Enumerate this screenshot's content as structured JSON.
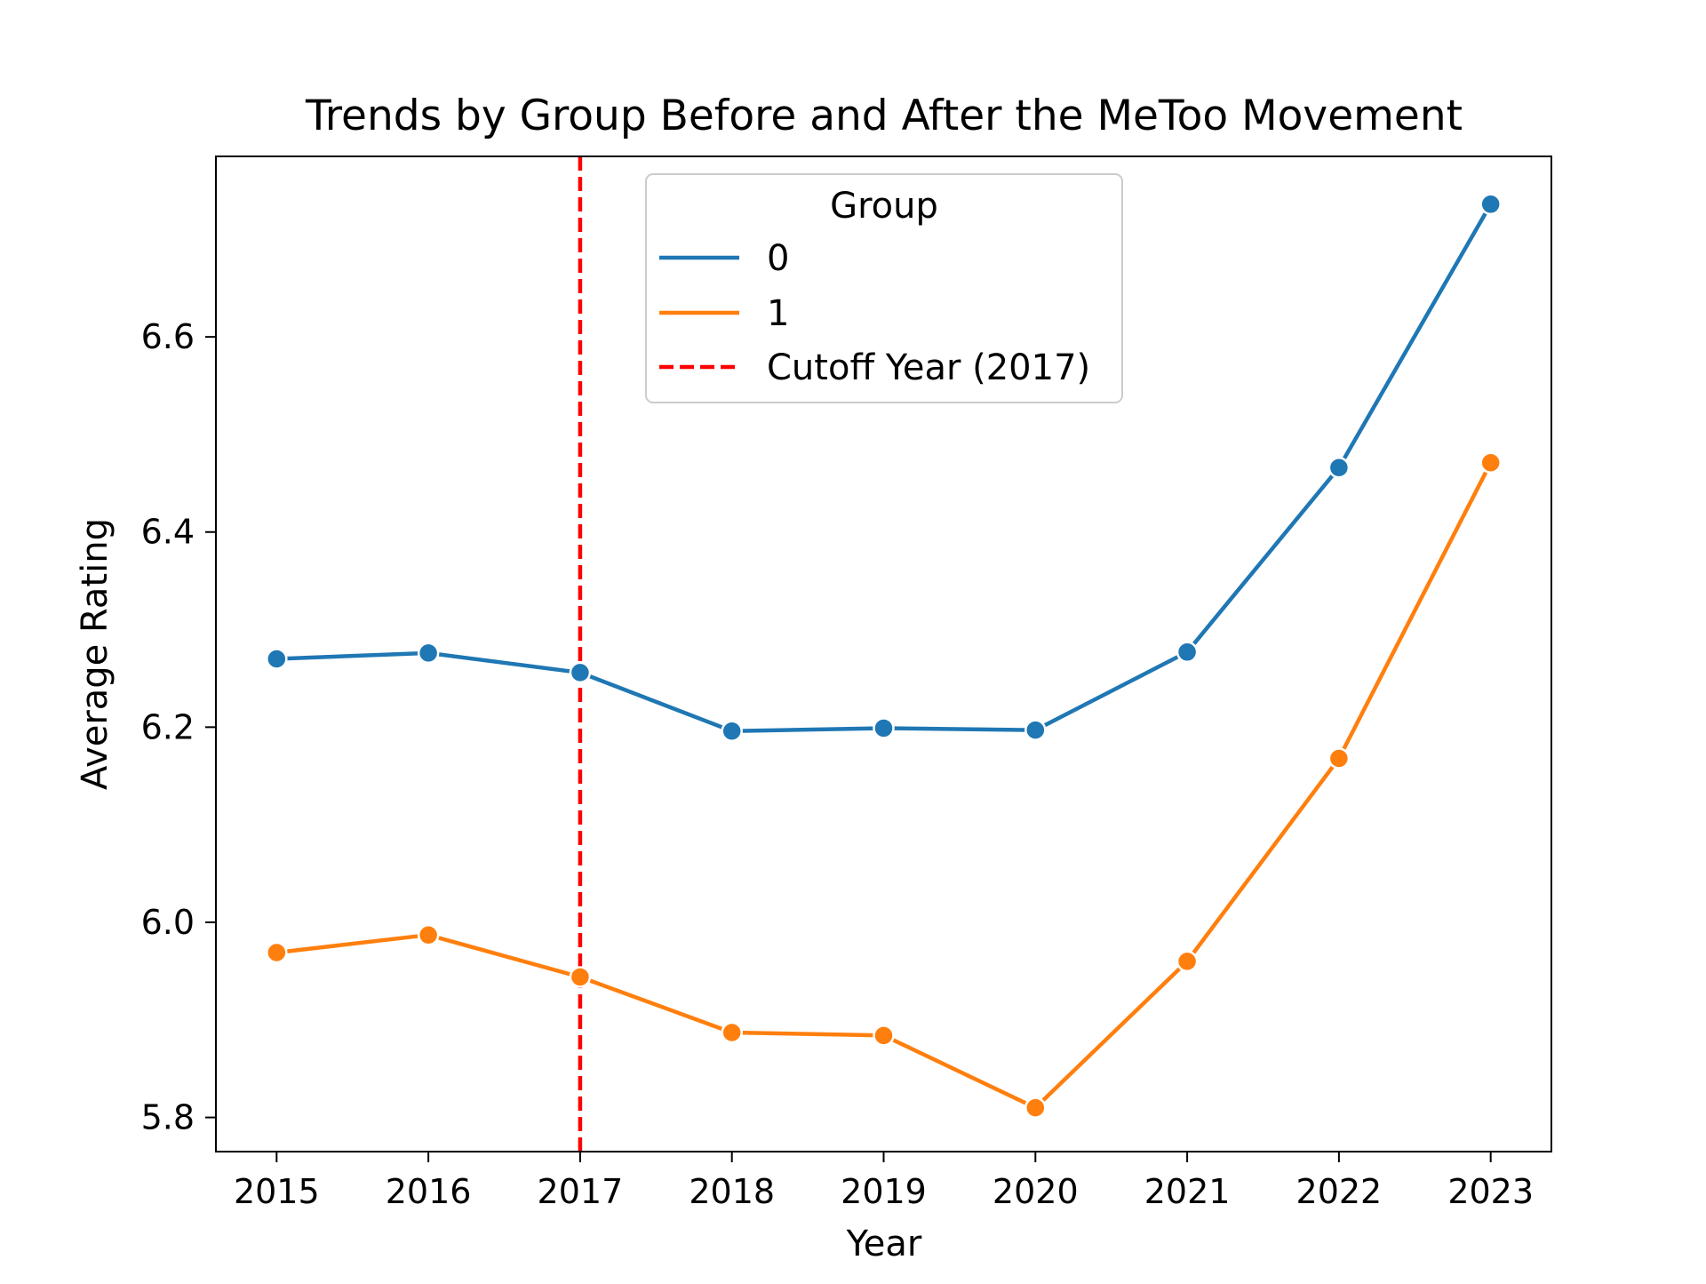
{
  "chart_data": {
    "type": "line",
    "title": "Trends by Group Before and After the MeToo Movement",
    "xlabel": "Year",
    "ylabel": "Average Rating",
    "x": [
      2015,
      2016,
      2017,
      2018,
      2019,
      2020,
      2021,
      2022,
      2023
    ],
    "xlim": [
      2014.6,
      2023.4
    ],
    "ylim": [
      5.765,
      6.785
    ],
    "yticks": [
      5.8,
      6.0,
      6.2,
      6.4,
      6.6
    ],
    "grid": false,
    "legend": {
      "title": "Group",
      "placement": "upper-center"
    },
    "series": [
      {
        "name": "0",
        "color": "#1f77b4",
        "values": [
          6.27,
          6.276,
          6.256,
          6.196,
          6.199,
          6.197,
          6.277,
          6.466,
          6.736
        ]
      },
      {
        "name": "1",
        "color": "#ff7f0e",
        "values": [
          5.969,
          5.987,
          5.944,
          5.887,
          5.884,
          5.81,
          5.96,
          6.168,
          6.471
        ]
      }
    ],
    "reference_line": {
      "label": "Cutoff Year (2017)",
      "x": 2017,
      "color": "#ff0000",
      "style": "dashed"
    }
  }
}
